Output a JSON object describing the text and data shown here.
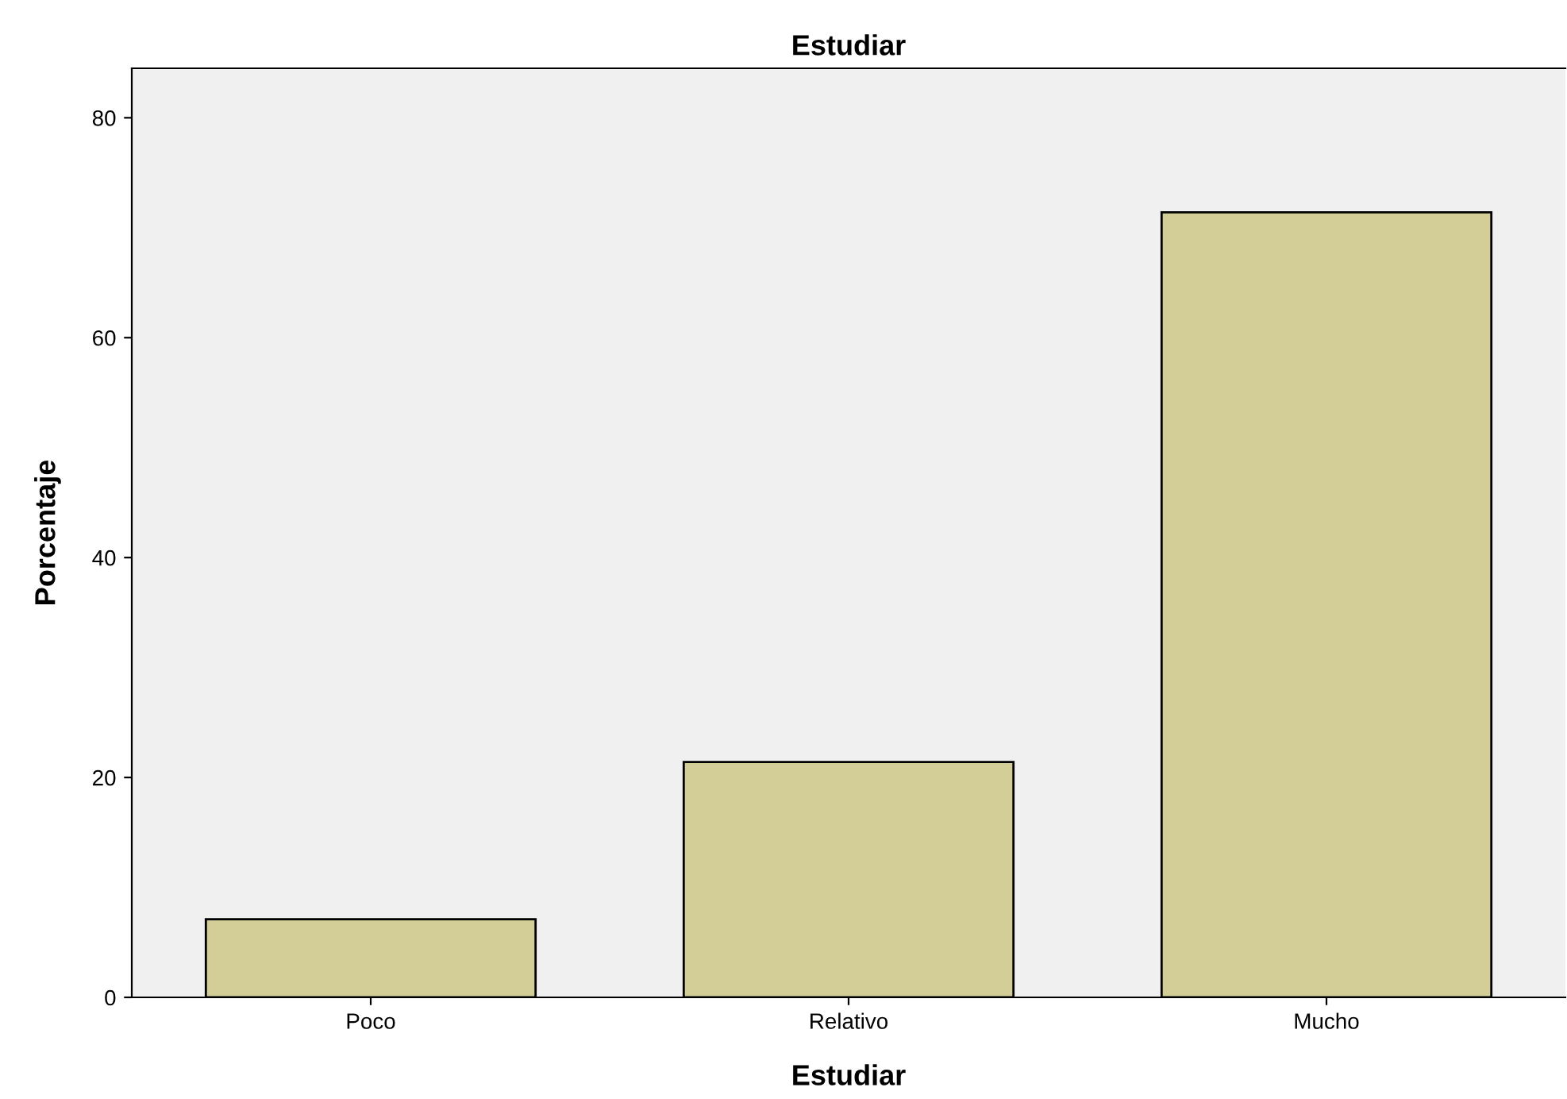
{
  "chart_data": {
    "type": "bar",
    "title": "Estudiar",
    "xlabel": "Estudiar",
    "ylabel": "Porcentaje",
    "categories": [
      "Poco",
      "Relativo",
      "Mucho"
    ],
    "values": [
      7.1,
      21.4,
      71.4
    ],
    "color": "#d3ce97",
    "ylim": [
      0,
      84.5
    ],
    "yticks": [
      0,
      20,
      40,
      60,
      80
    ],
    "grid": false
  }
}
